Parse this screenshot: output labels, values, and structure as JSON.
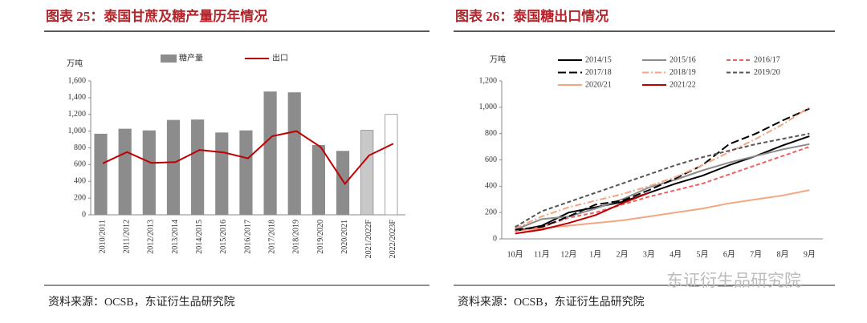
{
  "watermark": "东证衍生品研究院",
  "chart_data": [
    {
      "type": "bar",
      "title": "图表 25：泰国甘蔗及糖产量历年情况",
      "source": "资料来源：OCSB，东证衍生品研究院",
      "y_label": "万吨",
      "categories": [
        "2010/2011",
        "2011/2012",
        "2012/2013",
        "2013/2014",
        "2014/2015",
        "2015/2016",
        "2016/2017",
        "2017/2018",
        "2018/2019",
        "2019/2020",
        "2020/2021",
        "2021/2022F",
        "2022/2023F"
      ],
      "series": [
        {
          "name": "糖产量",
          "type": "bar",
          "color": "#8c8c8c",
          "colors": [
            "#8c8c8c",
            "#8c8c8c",
            "#8c8c8c",
            "#8c8c8c",
            "#8c8c8c",
            "#8c8c8c",
            "#8c8c8c",
            "#8c8c8c",
            "#8c8c8c",
            "#8c8c8c",
            "#8c8c8c",
            "#c8c8c8",
            "#ffffff"
          ],
          "values": [
            965,
            1025,
            1005,
            1130,
            1135,
            980,
            1005,
            1470,
            1460,
            830,
            760,
            1010,
            1200
          ]
        },
        {
          "name": "出口",
          "type": "line",
          "color": "#c00000",
          "values": [
            615,
            750,
            620,
            630,
            775,
            745,
            675,
            940,
            1000,
            810,
            370,
            710,
            850
          ]
        }
      ],
      "ylim": [
        0,
        1600
      ],
      "yticks": [
        0,
        200,
        400,
        600,
        800,
        {
          "value": 1000,
          "label": "1,000"
        },
        {
          "value": 1200,
          "label": "1,200"
        },
        {
          "value": 1400,
          "label": "1,400"
        },
        {
          "value": 1600,
          "label": "1,600"
        }
      ]
    },
    {
      "type": "line",
      "title": "图表 26：泰国糖出口情况",
      "source": "资料来源：OCSB，东证衍生品研究院",
      "y_label": "万吨",
      "categories": [
        "10月",
        "11月",
        "12月",
        "1月",
        "2月",
        "3月",
        "4月",
        "5月",
        "6月",
        "7月",
        "8月",
        "9月"
      ],
      "series": [
        {
          "name": "2014/15",
          "color": "#000000",
          "dash": "solid",
          "values": [
            60,
            100,
            200,
            240,
            280,
            350,
            420,
            480,
            560,
            630,
            710,
            780
          ]
        },
        {
          "name": "2015/16",
          "color": "#8c8c8c",
          "dash": "solid",
          "values": [
            70,
            150,
            170,
            230,
            300,
            390,
            450,
            520,
            580,
            630,
            680,
            720
          ]
        },
        {
          "name": "2016/17",
          "color": "#f06060",
          "dash": "dashed",
          "values": [
            60,
            90,
            160,
            200,
            260,
            320,
            370,
            420,
            490,
            560,
            630,
            700
          ]
        },
        {
          "name": "2017/18",
          "color": "#000000",
          "dash": "longdash",
          "values": [
            70,
            90,
            170,
            260,
            290,
            370,
            460,
            560,
            720,
            800,
            900,
            990
          ]
        },
        {
          "name": "2018/19",
          "color": "#f4a582",
          "dash": "dashdot",
          "values": [
            80,
            170,
            240,
            290,
            340,
            400,
            470,
            560,
            660,
            760,
            870,
            1000
          ]
        },
        {
          "name": "2019/20",
          "color": "#555555",
          "dash": "dashed",
          "values": [
            90,
            210,
            280,
            350,
            420,
            490,
            560,
            620,
            670,
            720,
            760,
            800
          ]
        },
        {
          "name": "2020/21",
          "color": "#f4a582",
          "dash": "solid",
          "values": [
            40,
            80,
            100,
            120,
            140,
            170,
            200,
            230,
            270,
            300,
            330,
            370
          ]
        },
        {
          "name": "2021/22",
          "color": "#c00000",
          "dash": "solid",
          "values": [
            40,
            70,
            120,
            180,
            270,
            350,
            null,
            null,
            null,
            null,
            null,
            null
          ]
        }
      ],
      "ylim": [
        0,
        1200
      ],
      "yticks": [
        0,
        200,
        400,
        600,
        800,
        {
          "value": 1000,
          "label": "1,000"
        },
        {
          "value": 1200,
          "label": "1,200"
        }
      ]
    }
  ]
}
